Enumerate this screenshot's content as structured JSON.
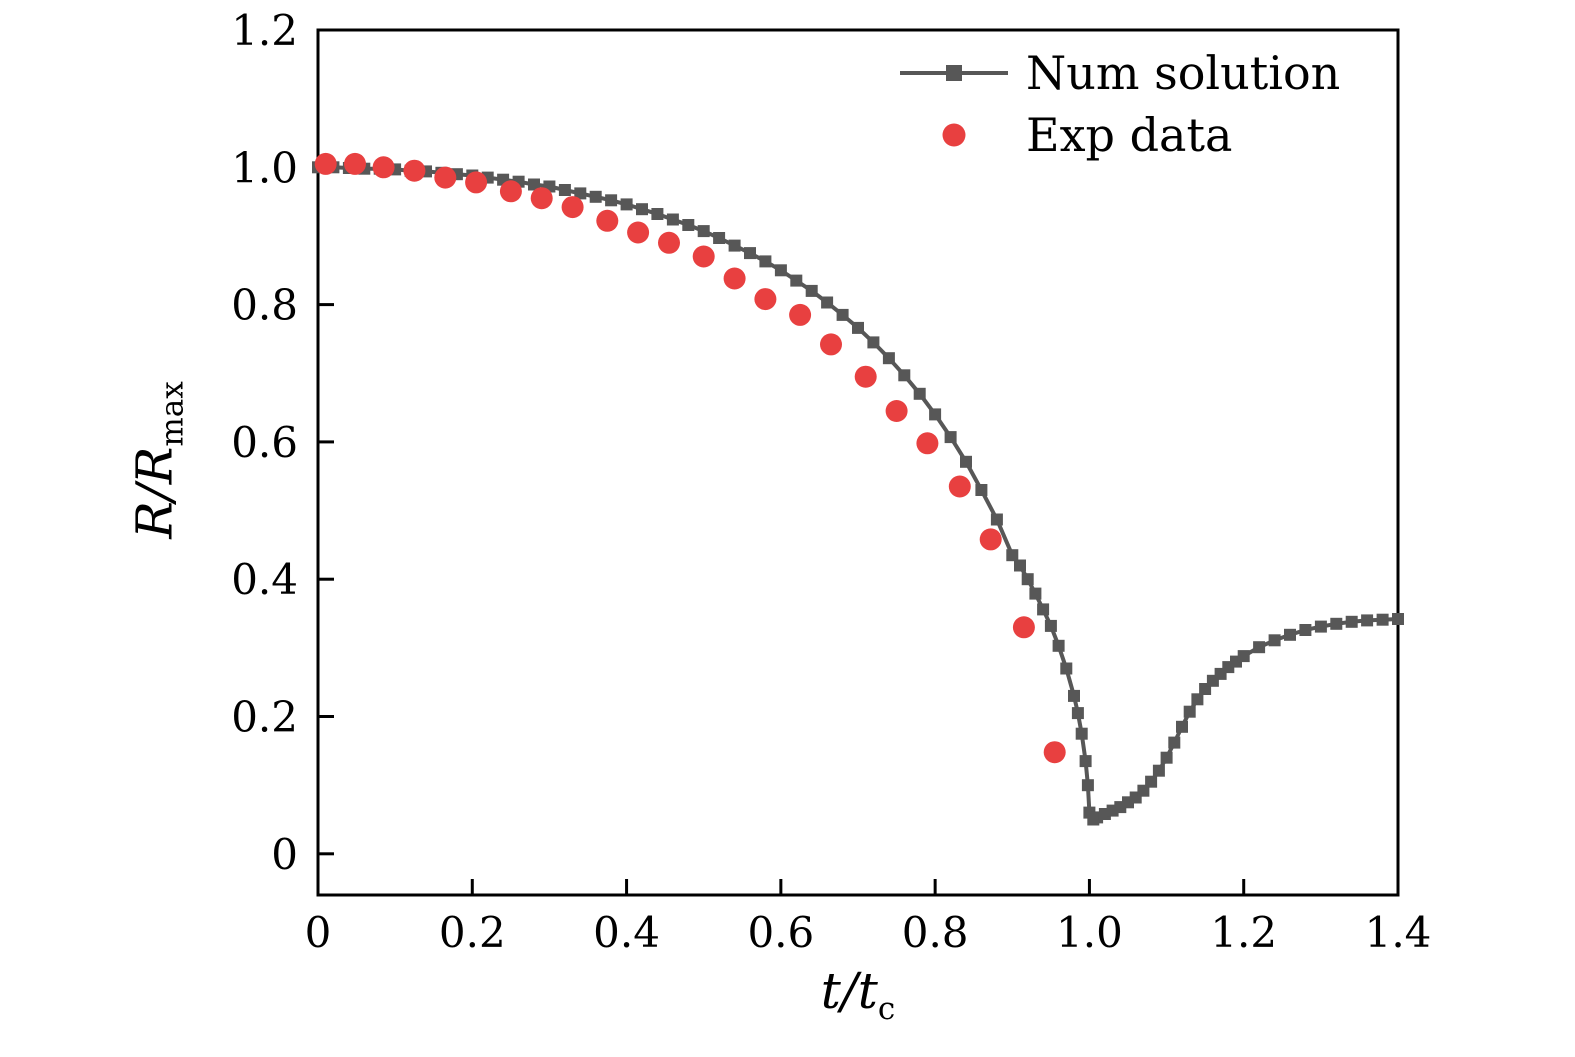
{
  "figure": {
    "background": "#ffffff",
    "axis_color": "#000000"
  },
  "chart_data": {
    "type": "line",
    "title": "",
    "xlabel": {
      "base": "t/t",
      "sub": "c",
      "text": "t/tc"
    },
    "ylabel": {
      "base": "R/R",
      "sub": "max",
      "text": "R/Rmax"
    },
    "xlim": [
      0,
      1.4
    ],
    "ylim": [
      -0.06,
      1.2
    ],
    "x_ticks": [
      0,
      0.2,
      0.4,
      0.6,
      0.8,
      1.0,
      1.2,
      1.4
    ],
    "x_tick_labels": [
      "0",
      "0.2",
      "0.4",
      "0.6",
      "0.8",
      "1.0",
      "1.2",
      "1.4"
    ],
    "y_ticks": [
      0,
      0.2,
      0.4,
      0.6,
      0.8,
      1.0,
      1.2
    ],
    "y_tick_labels": [
      "0",
      "0.2",
      "0.4",
      "0.6",
      "0.8",
      "1.0",
      "1.2"
    ],
    "grid": false,
    "legend_position": "top-right-inside",
    "series": [
      {
        "name": "Num solution",
        "type": "line+marker",
        "marker": "square",
        "color": "#575757",
        "x": [
          0.0,
          0.02,
          0.04,
          0.06,
          0.08,
          0.1,
          0.12,
          0.14,
          0.16,
          0.18,
          0.2,
          0.22,
          0.24,
          0.26,
          0.28,
          0.3,
          0.32,
          0.34,
          0.36,
          0.38,
          0.4,
          0.42,
          0.44,
          0.46,
          0.48,
          0.5,
          0.52,
          0.54,
          0.56,
          0.58,
          0.6,
          0.62,
          0.64,
          0.66,
          0.68,
          0.7,
          0.72,
          0.74,
          0.76,
          0.78,
          0.8,
          0.82,
          0.84,
          0.86,
          0.88,
          0.9,
          0.91,
          0.92,
          0.93,
          0.94,
          0.95,
          0.96,
          0.97,
          0.98,
          0.985,
          0.99,
          0.995,
          0.998,
          1.0,
          1.005,
          1.01,
          1.02,
          1.03,
          1.04,
          1.05,
          1.06,
          1.07,
          1.08,
          1.09,
          1.1,
          1.11,
          1.12,
          1.13,
          1.14,
          1.15,
          1.16,
          1.17,
          1.18,
          1.19,
          1.2,
          1.22,
          1.24,
          1.26,
          1.28,
          1.3,
          1.32,
          1.34,
          1.36,
          1.38,
          1.4
        ],
        "y": [
          1.0,
          1.0,
          0.999,
          0.998,
          0.998,
          0.997,
          0.995,
          0.994,
          0.992,
          0.99,
          0.988,
          0.985,
          0.982,
          0.979,
          0.975,
          0.972,
          0.967,
          0.962,
          0.957,
          0.952,
          0.946,
          0.939,
          0.932,
          0.924,
          0.916,
          0.907,
          0.897,
          0.886,
          0.875,
          0.863,
          0.85,
          0.835,
          0.82,
          0.803,
          0.785,
          0.766,
          0.745,
          0.722,
          0.697,
          0.67,
          0.64,
          0.607,
          0.571,
          0.53,
          0.487,
          0.435,
          0.42,
          0.4,
          0.379,
          0.356,
          0.332,
          0.303,
          0.27,
          0.23,
          0.205,
          0.175,
          0.135,
          0.1,
          0.06,
          0.05,
          0.053,
          0.058,
          0.063,
          0.068,
          0.075,
          0.082,
          0.092,
          0.105,
          0.121,
          0.14,
          0.162,
          0.185,
          0.207,
          0.225,
          0.24,
          0.252,
          0.262,
          0.272,
          0.28,
          0.288,
          0.301,
          0.311,
          0.319,
          0.326,
          0.331,
          0.335,
          0.338,
          0.34,
          0.341,
          0.342
        ]
      },
      {
        "name": "Exp data",
        "type": "scatter",
        "marker": "circle",
        "color": "#e84040",
        "x": [
          0.01,
          0.048,
          0.085,
          0.125,
          0.165,
          0.205,
          0.25,
          0.29,
          0.33,
          0.375,
          0.415,
          0.455,
          0.5,
          0.54,
          0.58,
          0.625,
          0.665,
          0.71,
          0.75,
          0.79,
          0.832,
          0.872,
          0.915,
          0.955
        ],
        "y": [
          1.005,
          1.005,
          1.0,
          0.995,
          0.985,
          0.978,
          0.965,
          0.955,
          0.942,
          0.922,
          0.905,
          0.89,
          0.87,
          0.838,
          0.808,
          0.785,
          0.742,
          0.695,
          0.645,
          0.598,
          0.535,
          0.458,
          0.33,
          0.148
        ]
      }
    ]
  }
}
